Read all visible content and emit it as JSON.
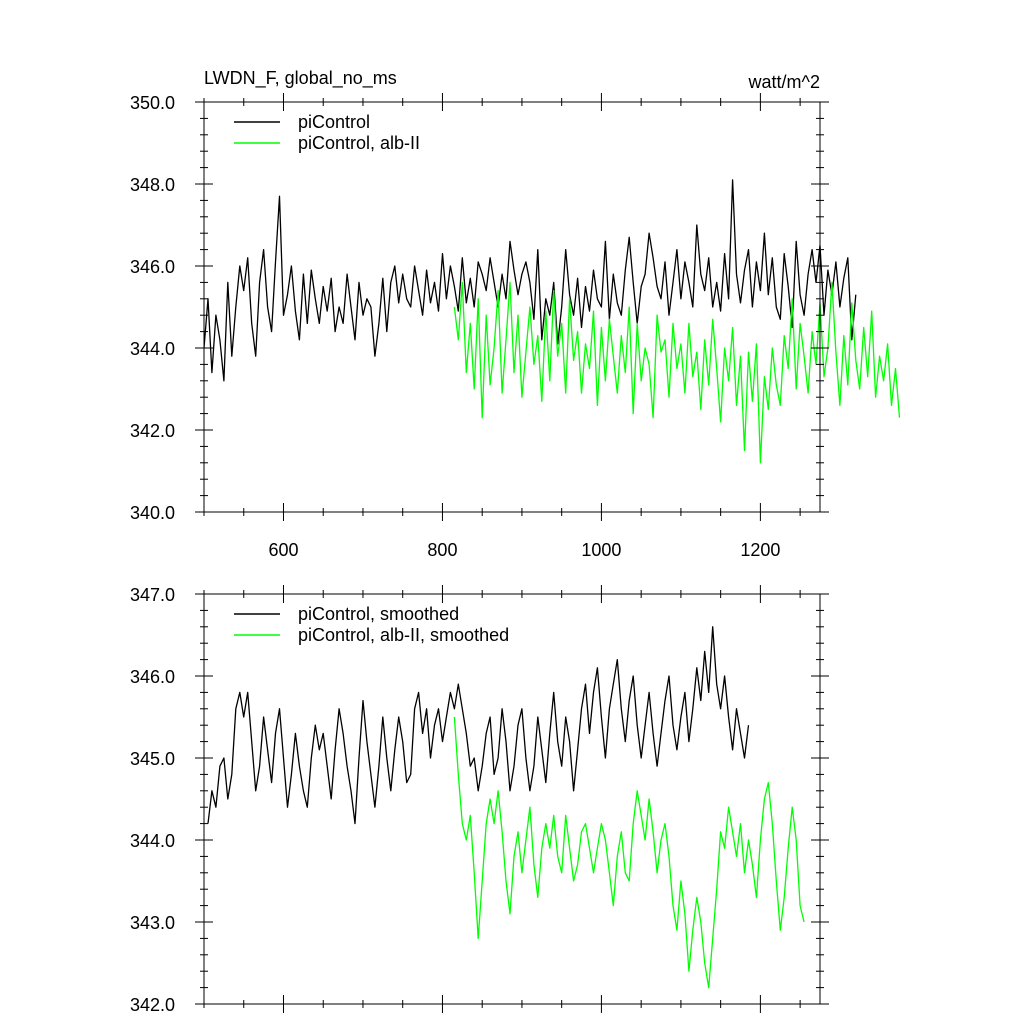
{
  "header": {
    "left_title": "LWDN_F, global_no_ms",
    "right_units": "watt/m^2"
  },
  "colors": {
    "series1": "#000000",
    "series2": "#00ff00"
  },
  "chart_data": [
    {
      "type": "line",
      "xlim": [
        500,
        1275
      ],
      "ylim": [
        340,
        350
      ],
      "x_major_ticks": [
        600,
        800,
        1000,
        1200
      ],
      "x_tick_labels": [
        "600",
        "800",
        "1000",
        "1200"
      ],
      "x_minor_step": 50,
      "y_major_ticks": [
        340,
        342,
        344,
        346,
        348,
        350
      ],
      "y_tick_labels": [
        "340.0",
        "342.0",
        "344.0",
        "346.0",
        "348.0",
        "350.0"
      ],
      "y_minor_step": 0.4,
      "grid": false,
      "legend_position": "top-left",
      "series": [
        {
          "name": "piControl",
          "color": "#000000",
          "x_start": 500,
          "x_step": 5,
          "values": [
            344.0,
            345.2,
            343.4,
            344.8,
            344.2,
            343.2,
            345.6,
            343.8,
            345.0,
            346.0,
            345.4,
            346.2,
            344.6,
            343.8,
            345.6,
            346.4,
            345.0,
            344.4,
            346.1,
            347.7,
            344.8,
            345.3,
            346.0,
            344.9,
            344.2,
            345.8,
            344.6,
            345.9,
            345.2,
            344.6,
            345.5,
            344.9,
            345.7,
            344.4,
            345.0,
            344.6,
            345.8,
            345.0,
            344.2,
            345.6,
            344.8,
            345.2,
            345.0,
            343.8,
            344.6,
            345.7,
            344.4,
            345.6,
            346.0,
            345.1,
            345.8,
            345.2,
            345.0,
            346.0,
            345.4,
            344.8,
            345.9,
            345.1,
            345.6,
            344.9,
            346.3,
            345.2,
            346.0,
            345.5,
            344.9,
            346.2,
            345.1,
            345.7,
            345.0,
            346.1,
            345.8,
            345.4,
            346.2,
            345.6,
            345.0,
            345.8,
            345.2,
            346.6,
            345.9,
            345.3,
            345.8,
            346.1,
            345.6,
            344.7,
            346.4,
            344.2,
            345.2,
            344.8,
            345.6,
            344.1,
            345.0,
            346.4,
            345.3,
            344.8,
            345.7,
            344.5,
            345.5,
            344.9,
            345.9,
            345.2,
            345.0,
            346.6,
            344.7,
            345.8,
            345.1,
            344.8,
            345.9,
            346.7,
            345.6,
            344.6,
            345.5,
            345.8,
            346.8,
            346.2,
            345.5,
            345.2,
            346.1,
            344.8,
            345.6,
            346.4,
            345.2,
            346.1,
            345.6,
            345.0,
            347.0,
            345.8,
            345.4,
            346.2,
            345.0,
            345.6,
            344.9,
            346.3,
            345.2,
            348.1,
            345.8,
            345.1,
            345.9,
            346.4,
            345.0,
            346.1,
            345.4,
            346.8,
            345.3,
            346.2,
            345.0,
            344.7,
            346.3,
            345.5,
            344.5,
            346.6,
            345.3,
            344.8,
            345.8,
            346.4,
            345.6,
            346.5,
            344.8,
            345.9,
            345.3,
            346.1,
            345.0,
            345.7,
            346.2,
            344.2,
            345.3
          ]
        },
        {
          "name": "piControl, alb-II",
          "color": "#00ff00",
          "x_start": 815,
          "x_step": 5,
          "values": [
            345.0,
            344.2,
            345.6,
            343.4,
            344.6,
            343.0,
            345.2,
            342.3,
            344.8,
            343.1,
            344.0,
            345.4,
            342.9,
            344.2,
            345.6,
            343.4,
            344.8,
            342.8,
            343.9,
            345.0,
            343.6,
            344.3,
            342.7,
            344.9,
            343.2,
            345.4,
            343.8,
            344.6,
            342.9,
            345.2,
            343.7,
            344.4,
            342.9,
            344.1,
            343.5,
            344.9,
            342.6,
            344.5,
            343.2,
            344.7,
            343.8,
            342.9,
            344.3,
            343.4,
            345.0,
            342.4,
            344.6,
            343.2,
            344.0,
            343.6,
            342.3,
            344.8,
            343.9,
            344.2,
            342.8,
            344.6,
            343.5,
            344.1,
            342.9,
            344.6,
            343.3,
            343.9,
            342.5,
            344.2,
            343.1,
            344.7,
            343.5,
            342.2,
            344.0,
            343.2,
            344.5,
            342.6,
            343.8,
            341.5,
            343.9,
            342.7,
            344.1,
            341.2,
            343.3,
            342.5,
            344.0,
            343.1,
            342.6,
            344.3,
            343.5,
            345.2,
            343.0,
            344.6,
            343.8,
            342.9,
            344.4,
            343.6,
            345.1,
            343.3,
            344.0,
            345.6,
            343.9,
            342.6,
            344.3,
            343.1,
            345.1,
            343.7,
            343.0,
            344.5,
            343.3,
            344.9,
            342.8,
            343.8,
            343.2,
            344.1,
            342.6,
            343.5,
            342.3
          ]
        }
      ]
    },
    {
      "type": "line",
      "xlim": [
        500,
        1275
      ],
      "ylim": [
        342,
        347
      ],
      "x_major_ticks": [
        600,
        800,
        1000,
        1200
      ],
      "x_tick_labels": [],
      "x_minor_step": 50,
      "y_major_ticks": [
        342,
        343,
        344,
        345,
        346,
        347
      ],
      "y_tick_labels": [
        "342.0",
        "343.0",
        "344.0",
        "345.0",
        "346.0",
        "347.0"
      ],
      "y_minor_step": 0.2,
      "grid": false,
      "legend_position": "top-left",
      "series": [
        {
          "name": "piControl, smoothed",
          "color": "#000000",
          "x_start": 505,
          "x_step": 5,
          "values": [
            344.2,
            344.6,
            344.4,
            344.9,
            345.0,
            344.5,
            344.8,
            345.6,
            345.8,
            345.5,
            345.8,
            345.2,
            344.6,
            344.9,
            345.5,
            345.1,
            344.7,
            345.3,
            345.6,
            345.0,
            344.4,
            344.8,
            345.3,
            344.9,
            344.6,
            344.4,
            345.0,
            345.4,
            345.1,
            345.3,
            344.9,
            344.5,
            345.1,
            345.6,
            345.3,
            344.9,
            344.6,
            344.2,
            345.0,
            345.7,
            345.2,
            344.8,
            344.4,
            344.9,
            345.5,
            345.0,
            344.6,
            345.1,
            345.5,
            345.2,
            344.7,
            344.8,
            345.6,
            345.8,
            345.3,
            345.6,
            345.0,
            345.4,
            345.6,
            345.2,
            345.5,
            345.8,
            345.6,
            345.9,
            345.6,
            345.3,
            344.9,
            345.0,
            344.6,
            344.9,
            345.3,
            345.5,
            344.8,
            345.0,
            345.6,
            345.2,
            344.6,
            344.9,
            345.4,
            345.6,
            345.0,
            344.6,
            344.9,
            345.5,
            345.1,
            344.7,
            345.3,
            345.8,
            345.2,
            344.9,
            345.5,
            345.2,
            344.6,
            345.1,
            345.6,
            345.9,
            345.3,
            345.8,
            346.1,
            345.5,
            345.0,
            345.6,
            345.9,
            346.2,
            345.6,
            345.2,
            345.7,
            346.0,
            345.4,
            345.0,
            345.4,
            345.8,
            345.3,
            344.9,
            345.3,
            345.7,
            346.0,
            345.4,
            345.1,
            345.5,
            345.8,
            345.2,
            345.6,
            346.1,
            345.7,
            346.3,
            345.8,
            346.6,
            345.9,
            345.6,
            346.0,
            345.5,
            345.1,
            345.6,
            345.3,
            345.0,
            345.4
          ]
        },
        {
          "name": "piControl, alb-II, smoothed",
          "color": "#00ff00",
          "x_start": 815,
          "x_step": 5,
          "values": [
            345.5,
            344.8,
            344.2,
            344.0,
            344.3,
            343.6,
            342.8,
            343.5,
            344.2,
            344.5,
            344.2,
            344.6,
            344.1,
            343.5,
            343.1,
            343.8,
            344.1,
            343.6,
            344.0,
            344.4,
            343.7,
            343.3,
            343.9,
            344.2,
            343.9,
            344.3,
            343.8,
            343.6,
            344.3,
            343.9,
            343.5,
            343.7,
            344.1,
            344.2,
            343.9,
            343.6,
            343.9,
            344.2,
            344.0,
            343.6,
            343.2,
            343.8,
            344.1,
            343.6,
            343.5,
            344.2,
            344.6,
            344.3,
            344.0,
            344.5,
            344.1,
            343.6,
            344.0,
            344.2,
            343.8,
            343.2,
            342.9,
            343.5,
            343.1,
            342.4,
            342.9,
            343.3,
            343.0,
            342.5,
            342.2,
            342.8,
            343.4,
            344.1,
            343.9,
            344.4,
            344.1,
            343.8,
            344.2,
            343.6,
            344.0,
            343.7,
            343.3,
            344.0,
            344.5,
            344.7,
            344.2,
            343.5,
            342.9,
            343.3,
            343.9,
            344.4,
            344.0,
            343.2,
            343.0
          ]
        }
      ]
    }
  ]
}
